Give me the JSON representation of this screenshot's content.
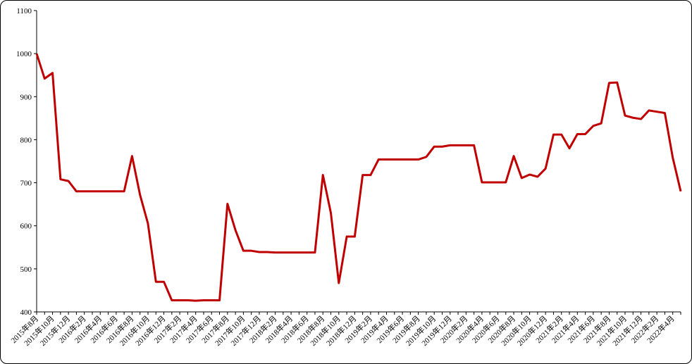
{
  "chart_data": {
    "type": "line",
    "categories": [
      "2015年8月",
      null,
      "2015年10月",
      null,
      "2015年12月",
      null,
      "2016年2月",
      null,
      "2016年4月",
      null,
      "2016年6月",
      null,
      "2016年8月",
      null,
      "2016年10月",
      null,
      "2016年12月",
      null,
      "2017年2月",
      null,
      "2017年4月",
      null,
      "2017年6月",
      null,
      "2017年8月",
      null,
      "2017年10月",
      null,
      "2017年12月",
      null,
      "2018年2月",
      null,
      "2018年4月",
      null,
      "2018年6月",
      null,
      "2018年8月",
      null,
      "2018年10月",
      null,
      "2018年12月",
      null,
      "2019年2月",
      null,
      "2019年4月",
      null,
      "2019年6月",
      null,
      "2019年8月",
      null,
      "2019年10月",
      null,
      "2019年12月",
      null,
      "2020年2月",
      null,
      "2020年4月",
      null,
      "2020年6月",
      null,
      "2020年8月",
      null,
      "2020年10月",
      null,
      "2020年12月",
      null,
      "2021年2月",
      null,
      "2021年4月",
      null,
      "2021年6月",
      null,
      "2021年8月",
      null,
      "2021年10月",
      null,
      "2021年12月",
      null,
      "2022年2月",
      null,
      "2022年4月",
      null
    ],
    "series": [
      {
        "color": "#c00000",
        "values": [
          1000,
          942,
          955,
          708,
          704,
          680,
          680,
          680,
          680,
          680,
          680,
          680,
          762,
          672,
          605,
          470,
          470,
          427,
          427,
          427,
          426,
          427,
          427,
          427,
          651,
          590,
          542,
          542,
          539,
          539,
          538,
          538,
          538,
          538,
          538,
          538,
          718,
          630,
          467,
          575,
          575,
          718,
          718,
          754,
          754,
          754,
          754,
          754,
          754,
          760,
          784,
          784,
          787,
          787,
          787,
          787,
          701,
          701,
          701,
          701,
          762,
          711,
          719,
          714,
          733,
          812,
          812,
          780,
          813,
          813,
          832,
          838,
          932,
          933,
          856,
          851,
          848,
          868,
          865,
          862,
          758,
          680
        ]
      }
    ],
    "ylim": [
      400,
      1100
    ],
    "yticks": [
      400,
      500,
      600,
      700,
      800,
      900,
      1000,
      1100
    ]
  }
}
